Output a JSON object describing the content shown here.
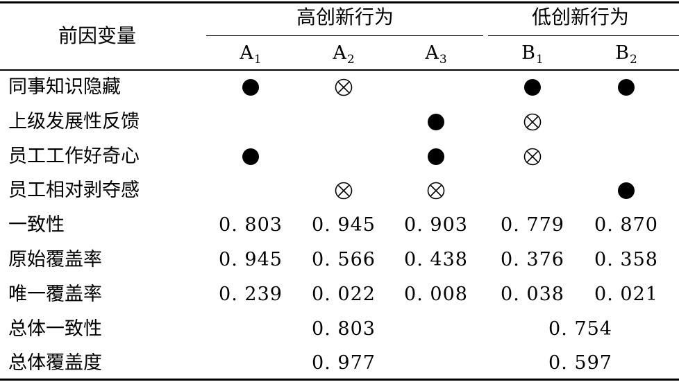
{
  "header": {
    "antecedent": "前因变量",
    "high_group": "高创新行为",
    "low_group": "低创新行为",
    "configs": [
      {
        "letter": "A",
        "sub": "1"
      },
      {
        "letter": "A",
        "sub": "2"
      },
      {
        "letter": "A",
        "sub": "3"
      },
      {
        "letter": "B",
        "sub": "1"
      },
      {
        "letter": "B",
        "sub": "2"
      }
    ]
  },
  "legend_symbols": {
    "core_present": "filled-circle",
    "core_absent": "circle-times"
  },
  "condition_rows": [
    {
      "label": "同事知识隐藏",
      "cells": [
        "present",
        "absent",
        "",
        "present",
        "present"
      ]
    },
    {
      "label": "上级发展性反馈",
      "cells": [
        "",
        "",
        "present",
        "absent",
        ""
      ]
    },
    {
      "label": "员工工作好奇心",
      "cells": [
        "present",
        "",
        "present",
        "absent",
        ""
      ]
    },
    {
      "label": "员工相对剥夺感",
      "cells": [
        "",
        "absent",
        "absent",
        "",
        "present"
      ]
    }
  ],
  "metric_rows": [
    {
      "label": "一致性",
      "values": [
        "0. 803",
        "0. 945",
        "0. 903",
        "0. 779",
        "0. 870"
      ]
    },
    {
      "label": "原始覆盖率",
      "values": [
        "0. 945",
        "0. 566",
        "0. 438",
        "0. 376",
        "0. 358"
      ]
    },
    {
      "label": "唯一覆盖率",
      "values": [
        "0. 239",
        "0. 022",
        "0. 008",
        "0. 038",
        "0. 021"
      ]
    }
  ],
  "overall_rows": [
    {
      "label": "总体一致性",
      "high": "0. 803",
      "low": "0. 754"
    },
    {
      "label": "总体覆盖度",
      "high": "0. 977",
      "low": "0. 597"
    }
  ]
}
